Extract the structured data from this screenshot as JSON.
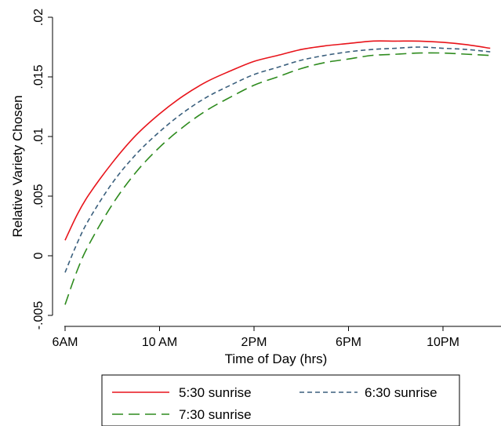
{
  "chart_data": {
    "type": "line",
    "xlabel": "Time of Day (hrs)",
    "ylabel": "Relative Variety Chosen",
    "xlim": [
      6,
      24
    ],
    "ylim": [
      -0.005,
      0.02
    ],
    "x_ticks": [
      {
        "value": 6,
        "label": "6AM"
      },
      {
        "value": 10,
        "label": "10 AM"
      },
      {
        "value": 14,
        "label": "2PM"
      },
      {
        "value": 18,
        "label": "6PM"
      },
      {
        "value": 22,
        "label": "10PM"
      }
    ],
    "y_ticks": [
      {
        "value": -0.005,
        "label": "-.005"
      },
      {
        "value": 0,
        "label": "0"
      },
      {
        "value": 0.005,
        "label": ".005"
      },
      {
        "value": 0.01,
        "label": ".01"
      },
      {
        "value": 0.015,
        "label": ".015"
      },
      {
        "value": 0.02,
        "label": ".02"
      }
    ],
    "series": [
      {
        "name": "5:30 sunrise",
        "color": "#e8141b",
        "dash": "solid",
        "x": [
          6,
          6.5,
          7,
          8,
          9,
          10,
          11,
          12,
          13,
          14,
          15,
          16,
          17,
          18,
          19,
          20,
          21,
          22,
          23,
          24
        ],
        "y": [
          0.0013,
          0.0034,
          0.0051,
          0.0078,
          0.0101,
          0.0119,
          0.0134,
          0.0146,
          0.0155,
          0.0163,
          0.0168,
          0.0173,
          0.0176,
          0.0178,
          0.018,
          0.018,
          0.018,
          0.0179,
          0.0177,
          0.0174
        ]
      },
      {
        "name": "6:30 sunrise",
        "color": "#3a5f7d",
        "dash": "short",
        "x": [
          6,
          6.5,
          7,
          8,
          9,
          10,
          11,
          12,
          13,
          14,
          15,
          16,
          17,
          18,
          19,
          20,
          21,
          22,
          23,
          24
        ],
        "y": [
          -0.0014,
          0.001,
          0.003,
          0.0061,
          0.0085,
          0.0104,
          0.012,
          0.0133,
          0.0143,
          0.0152,
          0.0158,
          0.0164,
          0.0168,
          0.0171,
          0.0173,
          0.0174,
          0.0175,
          0.0174,
          0.0173,
          0.0171
        ]
      },
      {
        "name": "7:30 sunrise",
        "color": "#2e8b1e",
        "dash": "long",
        "x": [
          6,
          6.5,
          7,
          8,
          9,
          10,
          11,
          12,
          13,
          14,
          15,
          16,
          17,
          18,
          19,
          20,
          21,
          22,
          23,
          24
        ],
        "y": [
          -0.0041,
          -0.0013,
          0.0009,
          0.0043,
          0.007,
          0.0091,
          0.0108,
          0.0122,
          0.0133,
          0.0143,
          0.015,
          0.0157,
          0.0162,
          0.0165,
          0.0168,
          0.0169,
          0.017,
          0.017,
          0.0169,
          0.0168
        ]
      }
    ],
    "legend": {
      "position": "bottom",
      "entries": [
        "5:30 sunrise",
        "6:30 sunrise",
        "7:30 sunrise"
      ]
    },
    "grid": false
  }
}
